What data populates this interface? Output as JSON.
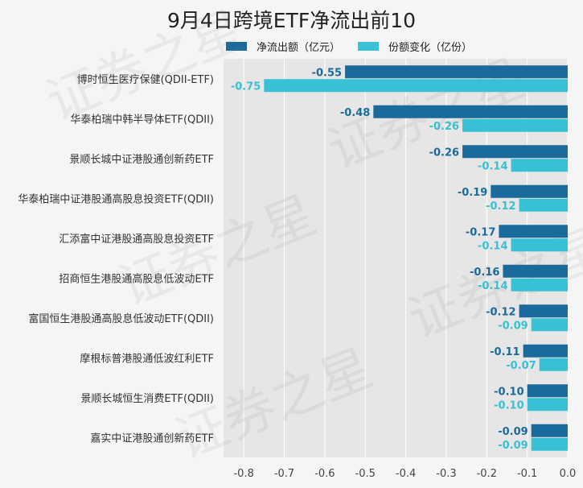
{
  "chart_data": {
    "type": "bar",
    "orientation": "horizontal",
    "title": "9月4日跨境ETF净流出前10",
    "categories": [
      "博时恒生医疗保健(QDII-ETF)",
      "华泰柏瑞中韩半导体ETF(QDII)",
      "景顺长城中证港股通创新药ETF",
      "华泰柏瑞中证港股通高股息投资ETF(QDII)",
      "汇添富中证港股通高股息投资ETF",
      "招商恒生港股通高股息低波动ETF",
      "富国恒生港股通高股息低波动ETF(QDII)",
      "摩根标普港股通低波红利ETF",
      "景顺长城恒生消费ETF(QDII)",
      "嘉实中证港股通创新药ETF"
    ],
    "series": [
      {
        "name": "净流出额（亿元）",
        "color": "#1b6a9c",
        "values": [
          -0.55,
          -0.48,
          -0.26,
          -0.19,
          -0.17,
          -0.16,
          -0.12,
          -0.11,
          -0.1,
          -0.09
        ],
        "labels": [
          "-0.55",
          "-0.48",
          "-0.26",
          "-0.19",
          "-0.17",
          "-0.16",
          "-0.12",
          "-0.11",
          "-0.10",
          "-0.09"
        ]
      },
      {
        "name": "份额变化（亿份）",
        "color": "#38c0d4",
        "values": [
          -0.75,
          -0.26,
          -0.14,
          -0.12,
          -0.14,
          -0.14,
          -0.09,
          -0.07,
          -0.1,
          -0.09
        ],
        "labels": [
          "-0.75",
          "-0.26",
          "-0.14",
          "-0.12",
          "-0.14",
          "-0.14",
          "-0.09",
          "-0.07",
          "-0.10",
          "-0.09"
        ]
      }
    ],
    "xlim": [
      -0.85,
      0.0
    ],
    "xticks": [
      -0.8,
      -0.7,
      -0.6,
      -0.5,
      -0.4,
      -0.3,
      -0.2,
      -0.1,
      0.0
    ],
    "xtick_labels": [
      "-0.8",
      "-0.7",
      "-0.6",
      "-0.5",
      "-0.4",
      "-0.3",
      "-0.2",
      "-0.1",
      "0.0"
    ],
    "grid": true,
    "legend_position": "top",
    "watermark": "证券之星",
    "plot_background": "#e6e6e6"
  }
}
